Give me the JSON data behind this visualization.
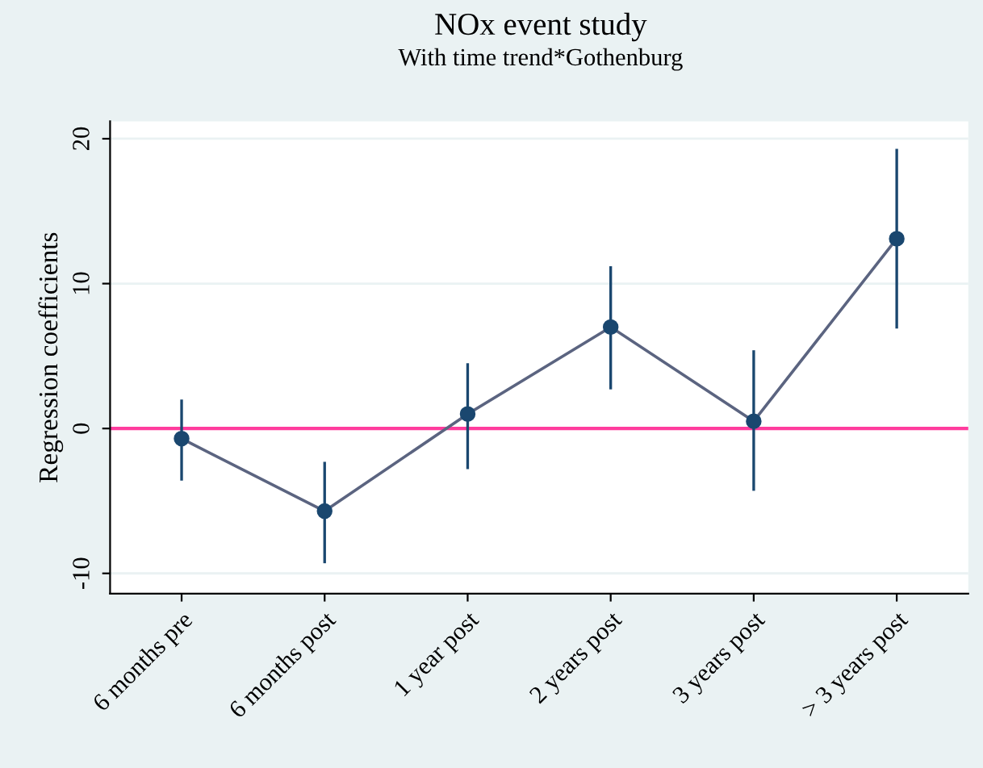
{
  "chart_data": {
    "type": "line",
    "title": "NOx event study",
    "subtitle": "With time trend*Gothenburg",
    "ylabel": "Regression coefficients",
    "categories": [
      "6 months pre",
      "6 months post",
      "1 year post",
      "2 years post",
      "3 years post",
      "> 3 years post"
    ],
    "series": [
      {
        "color": "#1a476f",
        "values": [
          -0.7,
          -5.7,
          1.0,
          7.0,
          0.5,
          13.1
        ],
        "errors": [
          [
            -3.6,
            2.0
          ],
          [
            -9.3,
            -2.3
          ],
          [
            -2.8,
            4.5
          ],
          [
            2.7,
            11.2
          ],
          [
            -4.3,
            5.4
          ],
          [
            6.9,
            19.3
          ]
        ]
      }
    ],
    "ylim": [
      -11.4,
      21.2
    ],
    "yticks": [
      -10,
      0,
      10,
      20
    ],
    "grid": "y",
    "marker": "circle",
    "line_style": "solid",
    "ref_lines": [
      {
        "axis": "y",
        "value": 0,
        "color": "#ff3c9d"
      }
    ]
  }
}
